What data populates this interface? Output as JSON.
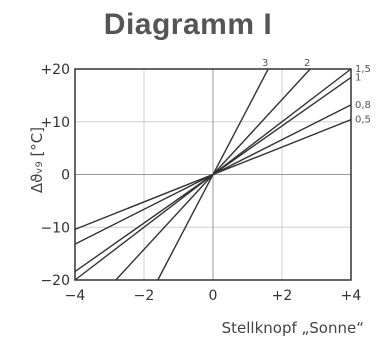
{
  "chart_data": {
    "type": "line",
    "title": "Diagramm I",
    "xlabel": "Stellknopf „Sonne“",
    "ylabel": "Δϑᵥ₉ [°C]",
    "xlim": [
      -4,
      4
    ],
    "ylim": [
      -20,
      20
    ],
    "xticks": [
      -4,
      -2,
      0,
      2,
      4
    ],
    "yticks": [
      -20,
      -10,
      0,
      10,
      20
    ],
    "x_tick_labels": [
      "−4",
      "−2",
      "0",
      "+2",
      "+4"
    ],
    "y_tick_labels": [
      "−20",
      "−10",
      "0",
      "+10",
      "+20"
    ],
    "grid": true,
    "series": [
      {
        "name": "3",
        "slope": 12.5
      },
      {
        "name": "2",
        "slope": 7.1
      },
      {
        "name": "1,5",
        "slope": 5.0
      },
      {
        "name": "1",
        "slope": 4.6
      },
      {
        "name": "0,8",
        "slope": 3.3
      },
      {
        "name": "0,5",
        "slope": 2.6
      }
    ]
  }
}
